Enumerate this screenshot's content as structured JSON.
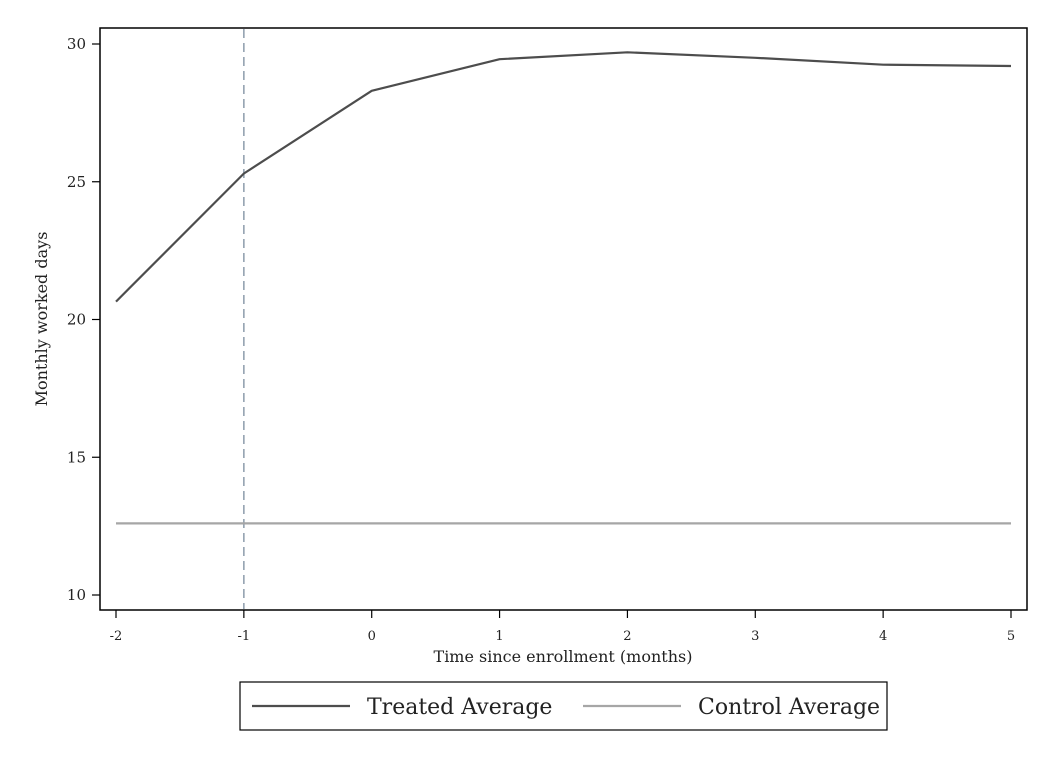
{
  "chart_data": {
    "type": "line",
    "title": "",
    "xlabel": "Time since enrollment (months)",
    "ylabel": "Monthly worked days",
    "x": [
      -2,
      -1,
      0,
      1,
      2,
      3,
      4,
      5
    ],
    "xlim": [
      -2,
      5
    ],
    "ylim": [
      10,
      30
    ],
    "x_ticks": [
      "-2",
      "-1",
      "0",
      "1",
      "2",
      "3",
      "4",
      "5"
    ],
    "y_ticks": [
      "10",
      "15",
      "20",
      "25",
      "30"
    ],
    "reference_line_x": -1,
    "grid": false,
    "legend_position": "bottom",
    "series": [
      {
        "name": "Treated Average",
        "color": "#4d4d4d",
        "values": [
          20.65,
          25.3,
          28.3,
          29.45,
          29.7,
          29.5,
          29.25,
          29.2
        ]
      },
      {
        "name": "Control Average",
        "color": "#a6a6a6",
        "values": [
          12.6,
          12.6,
          12.6,
          12.6,
          12.6,
          12.6,
          12.6,
          12.6
        ]
      }
    ]
  }
}
